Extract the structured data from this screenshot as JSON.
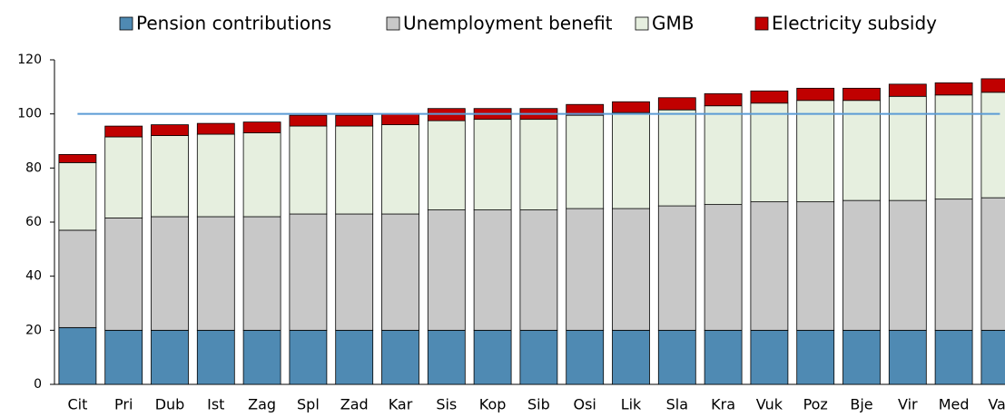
{
  "chart_data": {
    "type": "stacked_bar",
    "categories": [
      "Cit",
      "Pri",
      "Dub",
      "Ist",
      "Zag",
      "Spl",
      "Zad",
      "Kar",
      "Sis",
      "Kop",
      "Sib",
      "Osi",
      "Lik",
      "Sla",
      "Kra",
      "Vuk",
      "Poz",
      "Bje",
      "Vir",
      "Med",
      "Var"
    ],
    "series": [
      {
        "name": "Pension contributions",
        "color": "#4f8ab3",
        "values": [
          21,
          20,
          20,
          20,
          20,
          20,
          20,
          20,
          20,
          20,
          20,
          20,
          20,
          20,
          20,
          20,
          20,
          20,
          20,
          20,
          20
        ]
      },
      {
        "name": "Unemployment benefit",
        "color": "#c8c8c8",
        "values": [
          36,
          41.5,
          42,
          42,
          42,
          43,
          43,
          43,
          44.5,
          44.5,
          44.5,
          45,
          45,
          46,
          46.5,
          47.5,
          47.5,
          48,
          48,
          48.5,
          49
        ]
      },
      {
        "name": "GMB",
        "color": "#e6efdf",
        "values": [
          25,
          30,
          30,
          30.5,
          31,
          32.5,
          32.5,
          33,
          33,
          33.5,
          33.5,
          34.5,
          35.5,
          35.5,
          36.5,
          36.5,
          37.5,
          37,
          38.5,
          38.5,
          39
        ]
      },
      {
        "name": "Electricity subsidy",
        "color": "#c00000",
        "values": [
          3,
          4,
          4,
          4,
          4,
          4,
          4,
          4,
          4.5,
          4,
          4,
          4,
          4,
          4.5,
          4.5,
          4.5,
          4.5,
          4.5,
          4.5,
          4.5,
          5
        ]
      }
    ],
    "reference_line": {
      "value": 100,
      "color": "#5b9bd5"
    },
    "ylim": [
      0,
      120
    ],
    "yticks": [
      0,
      20,
      40,
      60,
      80,
      100,
      120
    ]
  }
}
